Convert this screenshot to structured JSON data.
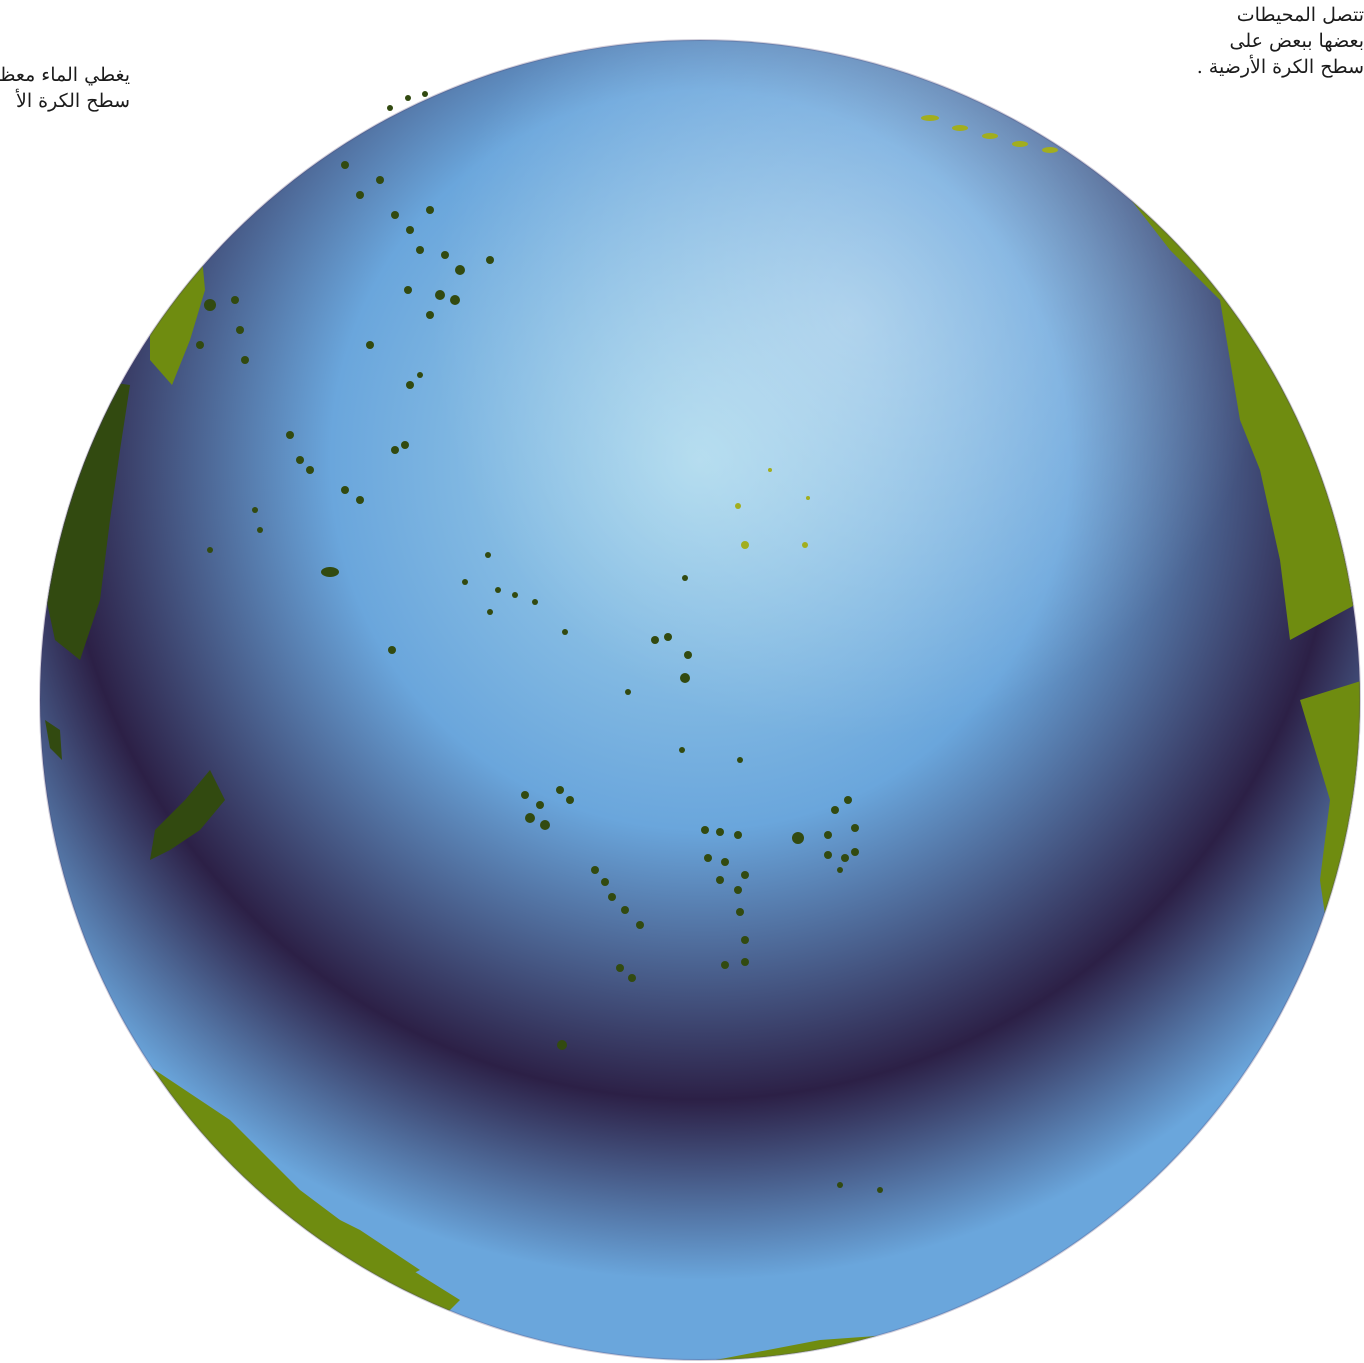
{
  "caption_left": {
    "line1": "يغطي الماء معظ",
    "line2": "سطح الكرة الأ"
  },
  "caption_right": {
    "line1": "تتصل  المحيطات",
    "line2": "بعضها  ببعض على",
    "line3": "سطح الكرة الأرضية ."
  },
  "globe": {
    "ocean_light": "#a6d6ec",
    "ocean_mid": "#6aa6dc",
    "ocean_dark": "#2c2046",
    "land": "#6f8c10",
    "land_dark": "#324a10",
    "land_light": "#a2ae1e"
  }
}
